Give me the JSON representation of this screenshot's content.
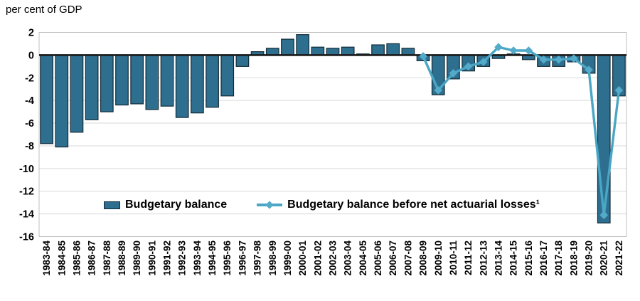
{
  "chart_data": {
    "type": "bar",
    "title": "per cent of GDP",
    "categories": [
      "1983-84",
      "1984-85",
      "1985-86",
      "1986-87",
      "1987-88",
      "1988-89",
      "1989-90",
      "1990-91",
      "1991-92",
      "1992-93",
      "1993-94",
      "1994-95",
      "1995-96",
      "1996-97",
      "1997-98",
      "1998-99",
      "1999-00",
      "2000-01",
      "2001-02",
      "2002-03",
      "2003-04",
      "2004-05",
      "2005-06",
      "2006-07",
      "2007-08",
      "2008-09",
      "2009-10",
      "2010-11",
      "2011-12",
      "2012-13",
      "2013-14",
      "2014-15",
      "2015-16",
      "2016-17",
      "2017-18",
      "2018-19",
      "2019-20",
      "2020-21",
      "2021-22"
    ],
    "series": [
      {
        "name": "Budgetary balance",
        "type": "bar",
        "values": [
          -7.8,
          -8.1,
          -6.8,
          -5.7,
          -5.0,
          -4.4,
          -4.3,
          -4.8,
          -4.5,
          -5.5,
          -5.1,
          -4.6,
          -3.6,
          -1.0,
          0.3,
          0.6,
          1.4,
          1.8,
          0.7,
          0.6,
          0.7,
          0.1,
          0.9,
          1.0,
          0.6,
          -0.5,
          -3.5,
          -2.1,
          -1.4,
          -1.0,
          -0.3,
          0.1,
          -0.4,
          -1.0,
          -1.0,
          -0.6,
          -1.6,
          -14.8,
          -3.6
        ]
      },
      {
        "name": "Budgetary balance before net actuarial losses¹",
        "type": "line",
        "start_category": "2008-09",
        "start_index": 25,
        "values": [
          -0.1,
          -3.1,
          -1.6,
          -1.0,
          -0.6,
          0.7,
          0.4,
          0.4,
          -0.4,
          -0.4,
          -0.3,
          -1.3,
          -14.1,
          -3.1
        ]
      }
    ],
    "ylim": [
      -16,
      2
    ],
    "yticks": [
      2,
      0,
      -2,
      -4,
      -6,
      -8,
      -10,
      -12,
      -14,
      -16
    ],
    "grid": true,
    "legend_position": "bottom-inside",
    "colors": {
      "bar_fill": "#2e6f8f",
      "bar_border": "#122a36",
      "line": "#4aa6c5",
      "marker": "#54abc9",
      "grid": "#d9d9d9",
      "axis_border": "#bfbfbf",
      "zero_line": "#1a1a1a",
      "text": "#000000"
    }
  },
  "legend": {
    "items": [
      {
        "label": "Budgetary balance",
        "swatch": "bar"
      },
      {
        "label": "Budgetary balance before net actuarial losses¹",
        "swatch": "line-diamond"
      }
    ]
  }
}
